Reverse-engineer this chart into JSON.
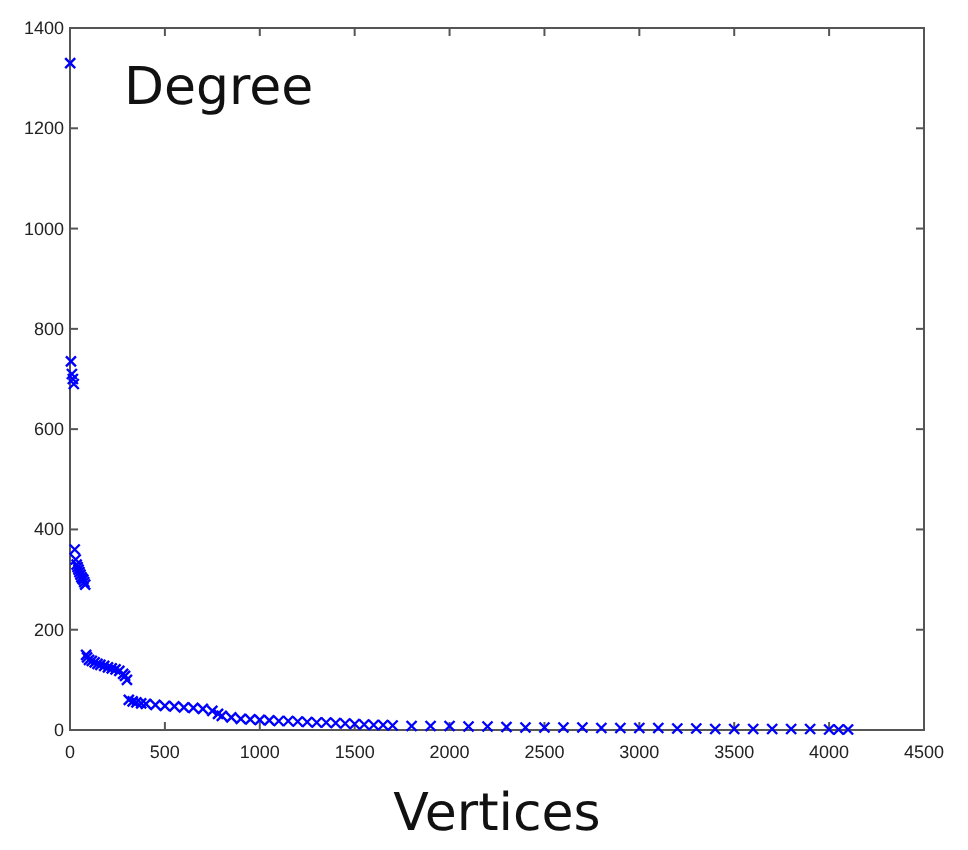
{
  "chart_data": {
    "type": "scatter",
    "title": "Degree",
    "xlabel": "Vertices",
    "marker": "cross",
    "grid": false,
    "xlim": [
      0,
      4500
    ],
    "xticks": [
      0,
      500,
      1000,
      1500,
      2000,
      2500,
      3000,
      3500,
      4000,
      4500
    ],
    "ylim": [
      0,
      1400
    ],
    "yticks": [
      0,
      200,
      400,
      600,
      800,
      1000,
      1200,
      1400
    ],
    "series": [
      {
        "color": "#0000ff",
        "x": [
          1,
          5,
          10,
          15,
          20,
          25,
          30,
          35,
          40,
          45,
          50,
          55,
          60,
          65,
          70,
          75,
          80,
          85,
          90,
          100,
          115,
          130,
          145,
          160,
          180,
          200,
          220,
          240,
          260,
          280,
          290,
          300,
          310,
          330,
          350,
          375,
          400,
          450,
          500,
          550,
          600,
          650,
          700,
          750,
          780,
          800,
          850,
          900,
          950,
          1000,
          1050,
          1100,
          1150,
          1200,
          1250,
          1300,
          1350,
          1400,
          1450,
          1500,
          1550,
          1600,
          1650,
          1700,
          1800,
          1900,
          2000,
          2100,
          2200,
          2300,
          2400,
          2500,
          2600,
          2700,
          2800,
          2900,
          3000,
          3100,
          3200,
          3300,
          3400,
          3500,
          3600,
          3700,
          3800,
          3900,
          4000,
          4050,
          4100
        ],
        "values": [
          1330,
          735,
          710,
          700,
          690,
          360,
          340,
          330,
          325,
          320,
          315,
          310,
          305,
          302,
          300,
          295,
          290,
          150,
          145,
          140,
          138,
          135,
          132,
          130,
          128,
          125,
          123,
          121,
          118,
          112,
          108,
          100,
          60,
          57,
          55,
          53,
          52,
          50,
          48,
          47,
          45,
          44,
          42,
          38,
          32,
          28,
          25,
          22,
          21,
          20,
          19,
          18,
          18,
          17,
          16,
          15,
          15,
          14,
          13,
          12,
          11,
          10,
          10,
          9,
          8,
          8,
          8,
          7,
          7,
          6,
          5,
          5,
          5,
          5,
          4,
          4,
          4,
          4,
          3,
          3,
          2,
          2,
          2,
          2,
          2,
          2,
          1,
          1,
          1
        ]
      }
    ]
  }
}
